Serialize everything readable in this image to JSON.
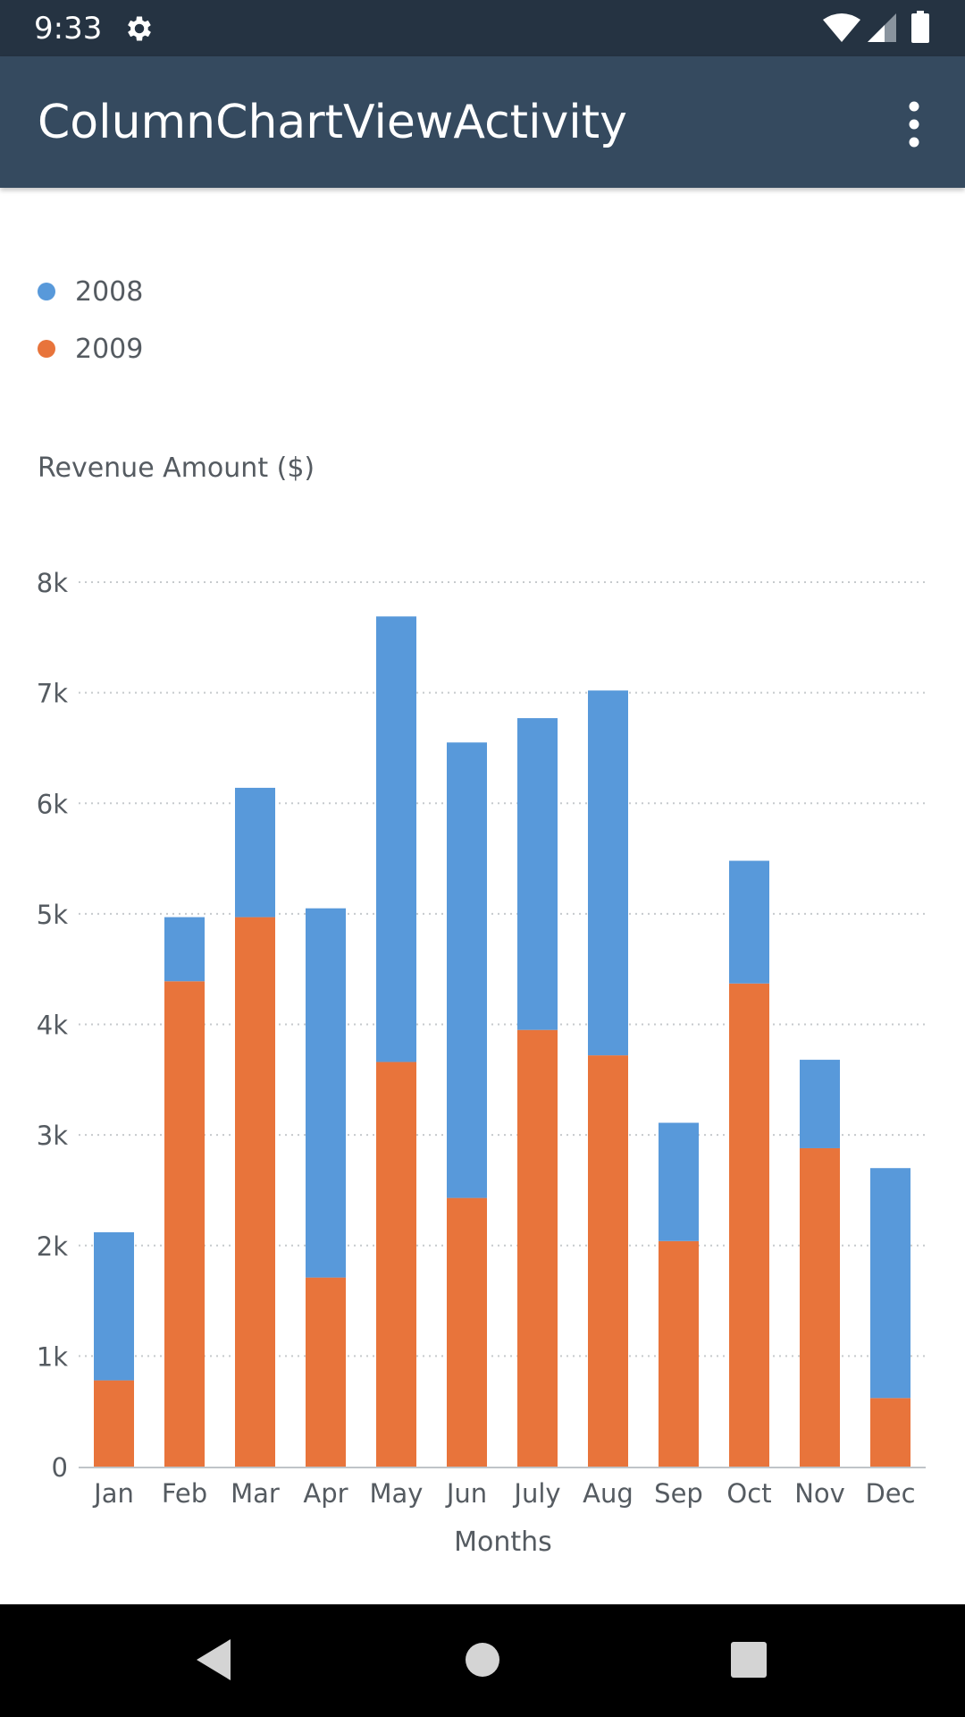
{
  "status_bar": {
    "time": "9:33",
    "icons": [
      "settings-gear-icon",
      "wifi-icon",
      "cellular-signal-icon",
      "battery-icon"
    ]
  },
  "app_bar": {
    "title": "ColumnChartViewActivity",
    "menu_icon": "more-vert-icon"
  },
  "colors": {
    "status_bar": "#253342",
    "app_bar": "#354a5f",
    "series_2008": "#5899da",
    "series_2009": "#e8743b",
    "text": "#555b61",
    "grid": "#c6cacd"
  },
  "chart_data": {
    "type": "bar",
    "stacked": true,
    "categories": [
      "Jan",
      "Feb",
      "Mar",
      "Apr",
      "May",
      "Jun",
      "July",
      "Aug",
      "Sep",
      "Oct",
      "Nov",
      "Dec"
    ],
    "series": [
      {
        "name": "2009",
        "values": [
          780,
          4390,
          4970,
          1710,
          3660,
          2430,
          3950,
          3720,
          2040,
          4370,
          2880,
          620
        ]
      },
      {
        "name": "2008",
        "values": [
          1340,
          580,
          1170,
          3340,
          4030,
          4120,
          2820,
          3300,
          1070,
          1110,
          800,
          2080
        ]
      }
    ],
    "legend": [
      {
        "label": "2008",
        "color": "#5899da"
      },
      {
        "label": "2009",
        "color": "#e8743b"
      }
    ],
    "legend_position": "top-left",
    "ylabel": "Revenue Amount ($)",
    "xlabel": "Months",
    "ylim": [
      0,
      8000
    ],
    "yticks": [
      "0",
      "1k",
      "2k",
      "3k",
      "4k",
      "5k",
      "6k",
      "7k",
      "8k"
    ],
    "grid": "horizontal dotted"
  },
  "nav_bar": {
    "icons": [
      "back-icon",
      "home-icon",
      "recents-icon"
    ]
  }
}
